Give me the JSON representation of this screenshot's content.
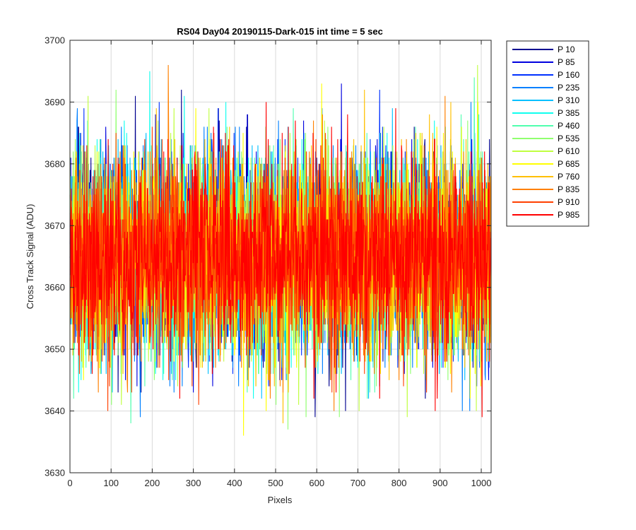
{
  "chart_data": {
    "type": "line",
    "title": "RS04 Day04 20190115-Dark-015 int time = 5 sec",
    "xlabel": "Pixels",
    "ylabel": "Cross Track Signal (ADU)",
    "xlim": [
      0,
      1024
    ],
    "ylim": [
      3630,
      3700
    ],
    "xticks": [
      0,
      100,
      200,
      300,
      400,
      500,
      600,
      700,
      800,
      900,
      1000
    ],
    "yticks": [
      3630,
      3640,
      3650,
      3660,
      3670,
      3680,
      3690,
      3700
    ],
    "grid": true,
    "legend_position": "outside-top-right",
    "noise_model": {
      "pixels": 1024,
      "mean": 3665,
      "std": 8
    },
    "series": [
      {
        "name": "P 10",
        "color": "#00008F"
      },
      {
        "name": "P 85",
        "color": "#0000DF"
      },
      {
        "name": "P 160",
        "color": "#0030FF"
      },
      {
        "name": "P 235",
        "color": "#0080FF"
      },
      {
        "name": "P 310",
        "color": "#00C0FF"
      },
      {
        "name": "P 385",
        "color": "#10FFEF"
      },
      {
        "name": "P 460",
        "color": "#50FFAF"
      },
      {
        "name": "P 535",
        "color": "#90FF6F"
      },
      {
        "name": "P 610",
        "color": "#C0FF40"
      },
      {
        "name": "P 685",
        "color": "#FFFF00"
      },
      {
        "name": "P 760",
        "color": "#FFC000"
      },
      {
        "name": "P 835",
        "color": "#FF8000"
      },
      {
        "name": "P 910",
        "color": "#FF4000"
      },
      {
        "name": "P 985",
        "color": "#FF0000"
      }
    ]
  }
}
